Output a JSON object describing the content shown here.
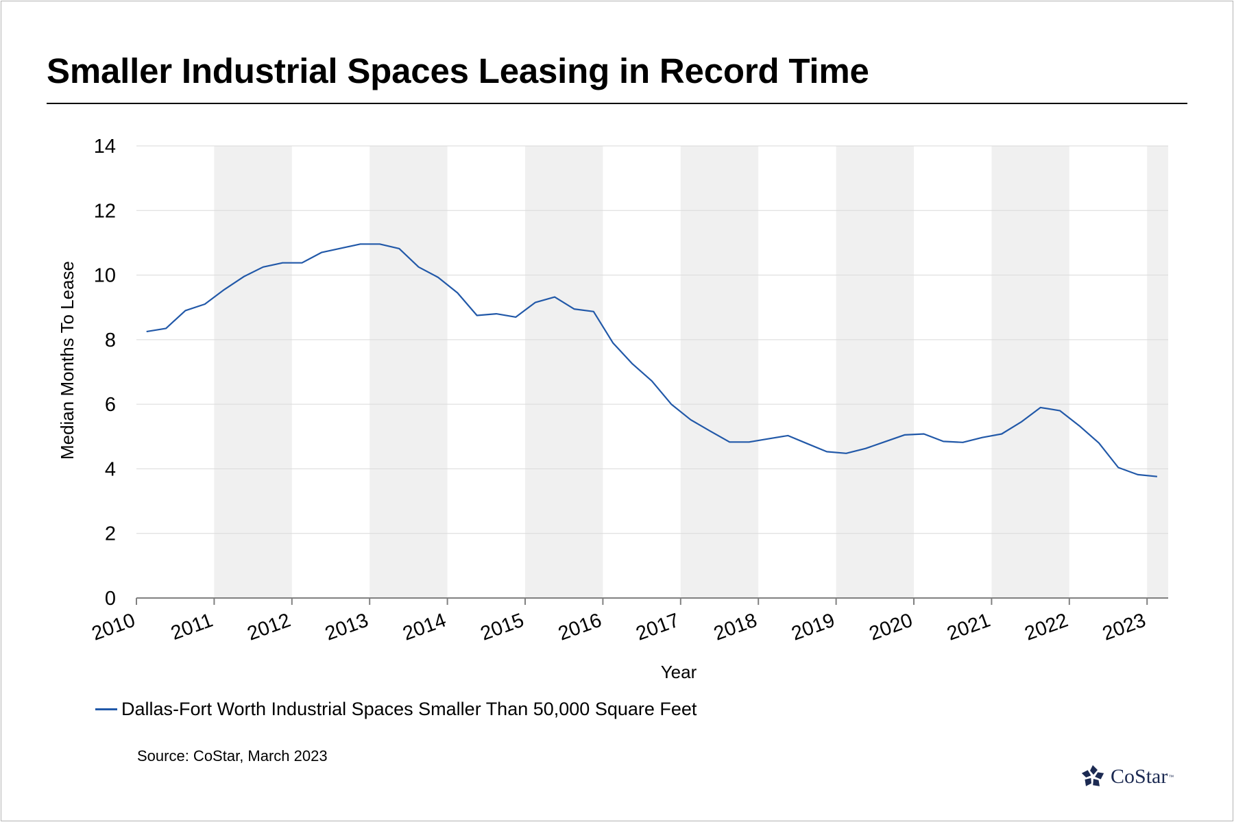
{
  "title": "Smaller Industrial Spaces Leasing in Record Time",
  "source": "Source: CoStar, March 2023",
  "brand": {
    "name": "CoStar",
    "trademark": "™",
    "logo_icon": "costar-star-icon"
  },
  "colors": {
    "series": "#2158a8",
    "band": "#f0f0f0",
    "grid": "#d9d9d9",
    "axis": "#808080",
    "brand": "#1c2a52"
  },
  "chart_data": {
    "type": "line",
    "title": "Smaller Industrial Spaces Leasing in Record Time",
    "xlabel": "Year",
    "ylabel": "Median Months To Lease",
    "xlim": [
      2010,
      2023.3
    ],
    "ylim": [
      0,
      14
    ],
    "yticks": [
      0,
      2,
      4,
      6,
      8,
      10,
      12,
      14
    ],
    "xticks": [
      "2010",
      "2011",
      "2012",
      "2013",
      "2014",
      "2015",
      "2016",
      "2017",
      "2018",
      "2019",
      "2020",
      "2021",
      "2022",
      "2023"
    ],
    "shaded_bands": [
      [
        2011,
        2012
      ],
      [
        2013,
        2014
      ],
      [
        2015,
        2016
      ],
      [
        2017,
        2018
      ],
      [
        2019,
        2020
      ],
      [
        2021,
        2022
      ],
      [
        2023,
        2023.3
      ]
    ],
    "grid": "horizontal",
    "legend_position": "bottom-left",
    "series": [
      {
        "name": "Dallas-Fort Worth Industrial Spaces Smaller Than 50,000 Square Feet",
        "x": [
          2010.13,
          2010.38,
          2010.63,
          2010.88,
          2011.13,
          2011.38,
          2011.63,
          2011.88,
          2012.13,
          2012.38,
          2012.63,
          2012.88,
          2013.13,
          2013.38,
          2013.63,
          2013.88,
          2014.13,
          2014.38,
          2014.63,
          2014.88,
          2015.13,
          2015.38,
          2015.63,
          2015.88,
          2016.13,
          2016.38,
          2016.63,
          2016.88,
          2017.13,
          2017.38,
          2017.63,
          2017.88,
          2018.13,
          2018.38,
          2018.63,
          2018.88,
          2019.13,
          2019.38,
          2019.63,
          2019.88,
          2020.13,
          2020.38,
          2020.63,
          2020.88,
          2021.13,
          2021.38,
          2021.63,
          2021.88,
          2022.13,
          2022.38,
          2022.63,
          2022.88,
          2023.13
        ],
        "y": [
          8.25,
          8.35,
          8.9,
          9.1,
          9.55,
          9.95,
          10.25,
          10.38,
          10.38,
          10.7,
          10.83,
          10.96,
          10.96,
          10.82,
          10.25,
          9.93,
          9.45,
          8.75,
          8.8,
          8.7,
          9.15,
          9.32,
          8.95,
          8.87,
          7.9,
          7.25,
          6.72,
          6.0,
          5.52,
          5.17,
          4.83,
          4.83,
          4.93,
          5.03,
          4.78,
          4.53,
          4.48,
          4.63,
          4.84,
          5.05,
          5.08,
          4.85,
          4.82,
          4.97,
          5.08,
          5.45,
          5.9,
          5.8,
          5.33,
          4.8,
          4.04,
          3.82,
          3.76
        ]
      }
    ]
  }
}
